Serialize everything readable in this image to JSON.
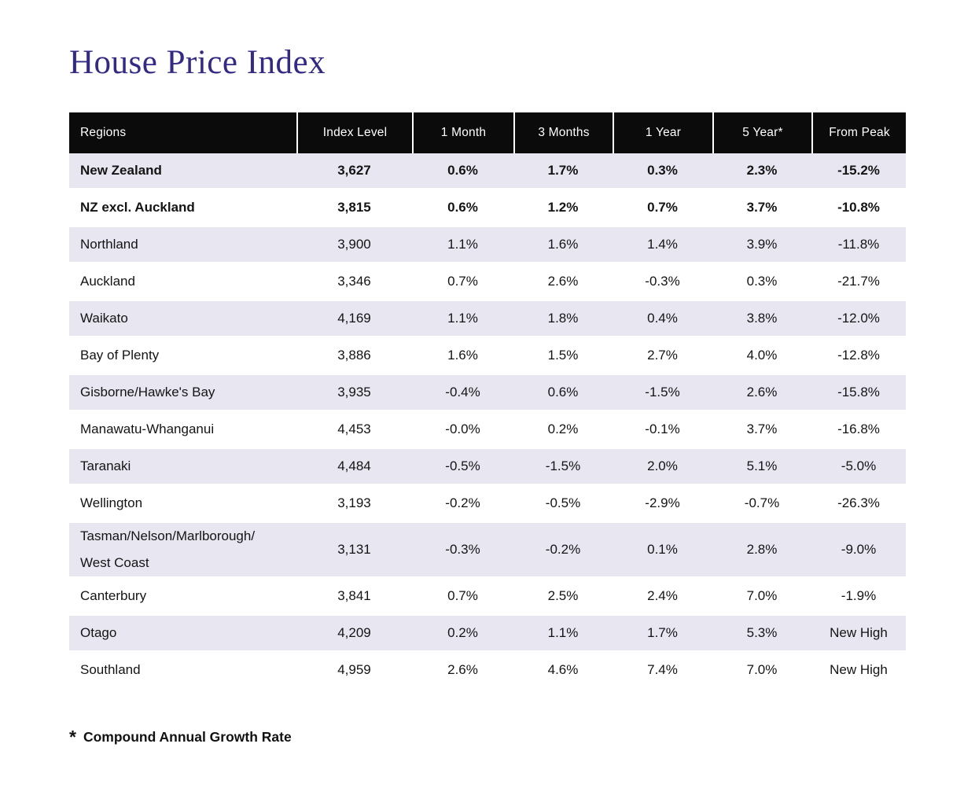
{
  "title": "House Price Index",
  "colors": {
    "title_text": "#332a86",
    "header_bg": "#0b0b0b",
    "header_text": "#ffffff",
    "row_alt_bg": "#e8e6f1",
    "row_bg": "#ffffff",
    "body_text": "#141414"
  },
  "table": {
    "columns": [
      {
        "label": "Regions"
      },
      {
        "label": "Index Level"
      },
      {
        "label": "1 Month"
      },
      {
        "label": "3 Months"
      },
      {
        "label": "1 Year"
      },
      {
        "label": "5 Year*"
      },
      {
        "label": "From Peak"
      }
    ],
    "rows": [
      {
        "region": "New Zealand",
        "bold": true,
        "values": [
          "3,627",
          "0.6%",
          "1.7%",
          "0.3%",
          "2.3%",
          "-15.2%"
        ]
      },
      {
        "region": "NZ excl. Auckland",
        "bold": true,
        "values": [
          "3,815",
          "0.6%",
          "1.2%",
          "0.7%",
          "3.7%",
          "-10.8%"
        ]
      },
      {
        "region": "Northland",
        "bold": false,
        "values": [
          "3,900",
          "1.1%",
          "1.6%",
          "1.4%",
          "3.9%",
          "-11.8%"
        ]
      },
      {
        "region": "Auckland",
        "bold": false,
        "values": [
          "3,346",
          "0.7%",
          "2.6%",
          "-0.3%",
          "0.3%",
          "-21.7%"
        ]
      },
      {
        "region": "Waikato",
        "bold": false,
        "values": [
          "4,169",
          "1.1%",
          "1.8%",
          "0.4%",
          "3.8%",
          "-12.0%"
        ]
      },
      {
        "region": "Bay of Plenty",
        "bold": false,
        "values": [
          "3,886",
          "1.6%",
          "1.5%",
          "2.7%",
          "4.0%",
          "-12.8%"
        ]
      },
      {
        "region": "Gisborne/Hawke's Bay",
        "bold": false,
        "values": [
          "3,935",
          "-0.4%",
          "0.6%",
          "-1.5%",
          "2.6%",
          "-15.8%"
        ]
      },
      {
        "region": "Manawatu-Whanganui",
        "bold": false,
        "values": [
          "4,453",
          "-0.0%",
          "0.2%",
          "-0.1%",
          "3.7%",
          "-16.8%"
        ]
      },
      {
        "region": "Taranaki",
        "bold": false,
        "values": [
          "4,484",
          "-0.5%",
          "-1.5%",
          "2.0%",
          "5.1%",
          "-5.0%"
        ]
      },
      {
        "region": "Wellington",
        "bold": false,
        "values": [
          "3,193",
          "-0.2%",
          "-0.5%",
          "-2.9%",
          "-0.7%",
          "-26.3%"
        ]
      },
      {
        "region": "Tasman/Nelson/Marlborough/\nWest Coast",
        "bold": false,
        "values": [
          "3,131",
          "-0.3%",
          "-0.2%",
          "0.1%",
          "2.8%",
          "-9.0%"
        ]
      },
      {
        "region": "Canterbury",
        "bold": false,
        "values": [
          "3,841",
          "0.7%",
          "2.5%",
          "2.4%",
          "7.0%",
          "-1.9%"
        ]
      },
      {
        "region": "Otago",
        "bold": false,
        "values": [
          "4,209",
          "0.2%",
          "1.1%",
          "1.7%",
          "5.3%",
          "New High"
        ]
      },
      {
        "region": "Southland",
        "bold": false,
        "values": [
          "4,959",
          "2.6%",
          "4.6%",
          "7.4%",
          "7.0%",
          "New High"
        ]
      }
    ]
  },
  "footnote": {
    "marker": "*",
    "text": "Compound Annual Growth Rate"
  },
  "chart_data": {
    "type": "table",
    "title": "House Price Index",
    "columns": [
      "Regions",
      "Index Level",
      "1 Month",
      "3 Months",
      "1 Year",
      "5 Year*",
      "From Peak"
    ],
    "rows": [
      [
        "New Zealand",
        3627,
        0.6,
        1.7,
        0.3,
        2.3,
        -15.2
      ],
      [
        "NZ excl. Auckland",
        3815,
        0.6,
        1.2,
        0.7,
        3.7,
        -10.8
      ],
      [
        "Northland",
        3900,
        1.1,
        1.6,
        1.4,
        3.9,
        -11.8
      ],
      [
        "Auckland",
        3346,
        0.7,
        2.6,
        -0.3,
        0.3,
        -21.7
      ],
      [
        "Waikato",
        4169,
        1.1,
        1.8,
        0.4,
        3.8,
        -12.0
      ],
      [
        "Bay of Plenty",
        3886,
        1.6,
        1.5,
        2.7,
        4.0,
        -12.8
      ],
      [
        "Gisborne/Hawke's Bay",
        3935,
        -0.4,
        0.6,
        -1.5,
        2.6,
        -15.8
      ],
      [
        "Manawatu-Whanganui",
        4453,
        -0.0,
        0.2,
        -0.1,
        3.7,
        -16.8
      ],
      [
        "Taranaki",
        4484,
        -0.5,
        -1.5,
        2.0,
        5.1,
        -5.0
      ],
      [
        "Wellington",
        3193,
        -0.2,
        -0.5,
        -2.9,
        -0.7,
        -26.3
      ],
      [
        "Tasman/Nelson/Marlborough/West Coast",
        3131,
        -0.3,
        -0.2,
        0.1,
        2.8,
        -9.0
      ],
      [
        "Canterbury",
        3841,
        0.7,
        2.5,
        2.4,
        7.0,
        -1.9
      ],
      [
        "Otago",
        4209,
        0.2,
        1.1,
        1.7,
        5.3,
        "New High"
      ],
      [
        "Southland",
        4959,
        2.6,
        4.6,
        7.4,
        7.0,
        "New High"
      ]
    ],
    "units": "percent change except Index Level",
    "footnote": "* Compound Annual Growth Rate"
  }
}
